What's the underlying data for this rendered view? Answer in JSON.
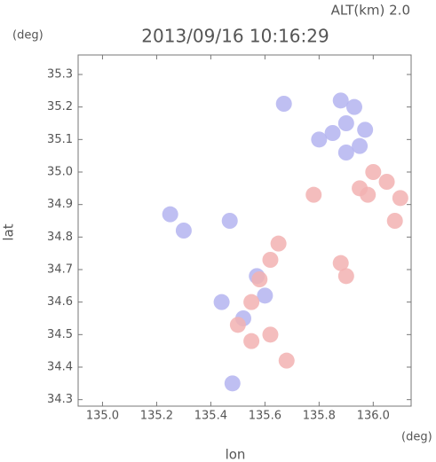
{
  "chart_data": {
    "type": "scatter",
    "title": "2013/09/16 10:16:29",
    "subtitle": "ALT(km)  2.0",
    "x_label": "lon",
    "y_label": "lat",
    "x_unit": "(deg)",
    "y_unit": "(deg)",
    "xlim": [
      134.91,
      136.14
    ],
    "ylim": [
      34.28,
      35.36
    ],
    "xticks": [
      {
        "value": 135,
        "label": "135.0"
      },
      135.2,
      135.4,
      135.6,
      135.8,
      {
        "value": 136,
        "label": "136.0"
      }
    ],
    "yticks": [
      34.3,
      34.4,
      34.5,
      34.6,
      34.7,
      34.8,
      34.9,
      {
        "value": 35,
        "label": "35.0"
      },
      35.1,
      35.2,
      35.3
    ],
    "series": [
      {
        "color": "#b4b4f0",
        "x": [
          135.88,
          135.93,
          135.9,
          135.97,
          135.85,
          135.95,
          135.8,
          135.9,
          135.67,
          135.47,
          135.44,
          135.52,
          135.6,
          135.25,
          135.3,
          135.48,
          135.57
        ],
        "values": [
          35.22,
          35.2,
          35.15,
          35.13,
          35.12,
          35.08,
          35.1,
          35.06,
          35.21,
          34.85,
          34.6,
          34.55,
          34.62,
          34.87,
          34.82,
          34.35,
          34.68
        ]
      },
      {
        "color": "#f2b2b2",
        "x": [
          136.0,
          136.05,
          135.98,
          136.1,
          135.95,
          135.88,
          135.9,
          135.65,
          135.62,
          135.58,
          135.55,
          135.5,
          135.62,
          135.68,
          135.55,
          136.08,
          135.78
        ],
        "values": [
          35.0,
          34.97,
          34.93,
          34.92,
          34.95,
          34.72,
          34.68,
          34.78,
          34.73,
          34.67,
          34.6,
          34.53,
          34.5,
          34.42,
          34.48,
          34.85,
          34.93
        ]
      }
    ]
  }
}
